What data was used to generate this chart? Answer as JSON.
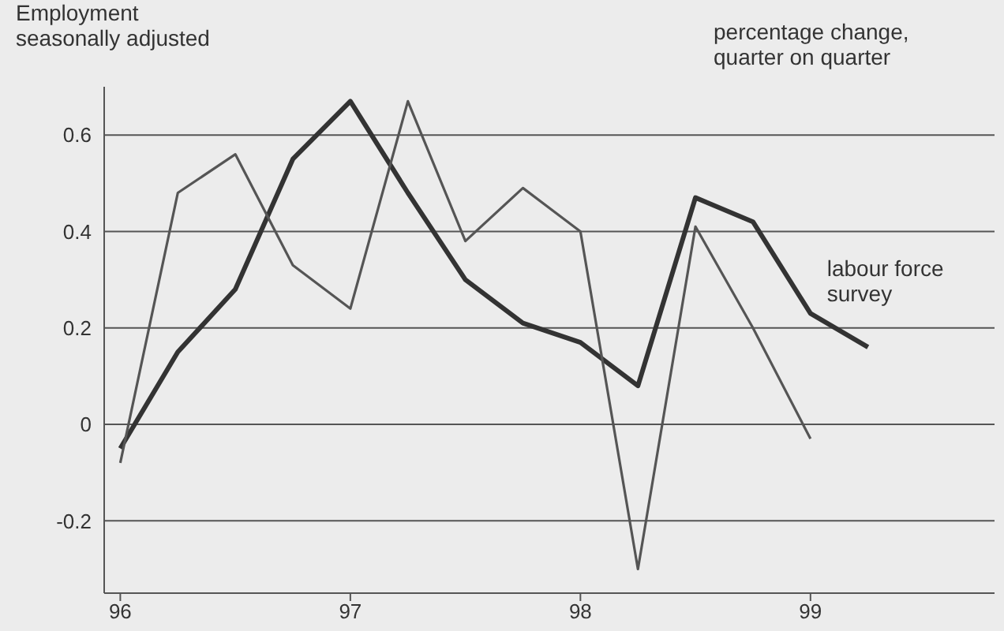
{
  "chart_data": {
    "type": "line",
    "title": "Employment",
    "subtitle": "seasonally adjusted",
    "annotations": [
      "percentage change, quarter on quarter"
    ],
    "x": [
      96,
      96.25,
      96.5,
      96.75,
      97,
      97.25,
      97.5,
      97.75,
      98,
      98.25,
      98.5,
      98.75,
      99,
      99.25
    ],
    "series": [
      {
        "name": "labour force survey",
        "color": "#333333",
        "values": [
          -0.05,
          0.15,
          0.28,
          0.55,
          0.67,
          0.48,
          0.3,
          0.21,
          0.17,
          0.08,
          0.47,
          0.42,
          0.23,
          0.16
        ]
      },
      {
        "color": "#555555",
        "values": [
          -0.08,
          0.48,
          0.56,
          0.33,
          0.24,
          0.67,
          0.38,
          0.49,
          0.4,
          -0.3,
          0.41,
          0.2,
          -0.03,
          null
        ]
      }
    ],
    "xlim": [
      95.93,
      99.8
    ],
    "xticks": [
      96,
      97,
      98,
      99
    ],
    "ylim": [
      -0.35,
      0.7
    ],
    "yticks": [
      -0.2,
      0,
      0.2,
      0.4,
      0.6
    ],
    "grid": "y",
    "marker": "none",
    "line_style": "solid"
  }
}
